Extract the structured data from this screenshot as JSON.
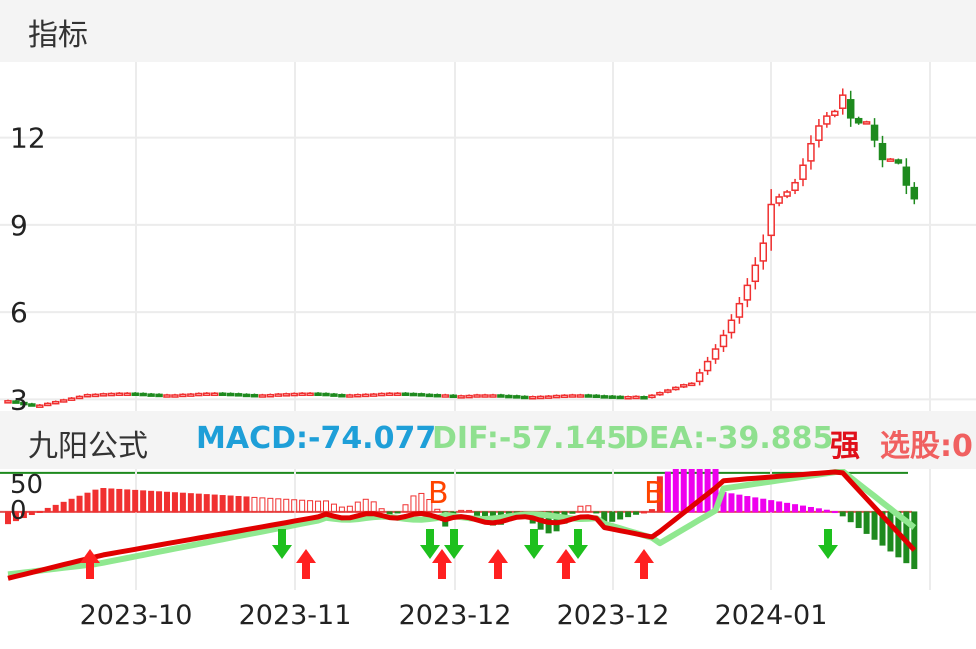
{
  "header": {
    "title": "指标"
  },
  "indicator": {
    "name": "九阳公式",
    "macd": "MACD:-74.077",
    "dif": "DIF:-57.145",
    "dea": "DEA:-39.885",
    "strong": "强",
    "select": "选股:0"
  },
  "colors": {
    "up": "#f03030",
    "down": "#1e8a1e",
    "macd_pos": "#ee00ee",
    "dif": "#e00000",
    "dea": "#90e890"
  },
  "chart_data": [
    {
      "type": "candlestick",
      "y_ticks": [
        3,
        6,
        9,
        12
      ],
      "ylim": [
        2.6,
        14.6
      ],
      "grid": true,
      "x_labels": [
        "2023-10",
        "2023-11",
        "2023-12",
        "2023-12",
        "2024-01"
      ],
      "candles": []
    },
    {
      "type": "bar",
      "name": "九阳公式",
      "y_ticks": [
        50,
        0
      ],
      "ylim": [
        -100,
        55
      ],
      "macd": [],
      "dif": [],
      "dea": [],
      "signals": [
        "B",
        "B"
      ]
    }
  ]
}
